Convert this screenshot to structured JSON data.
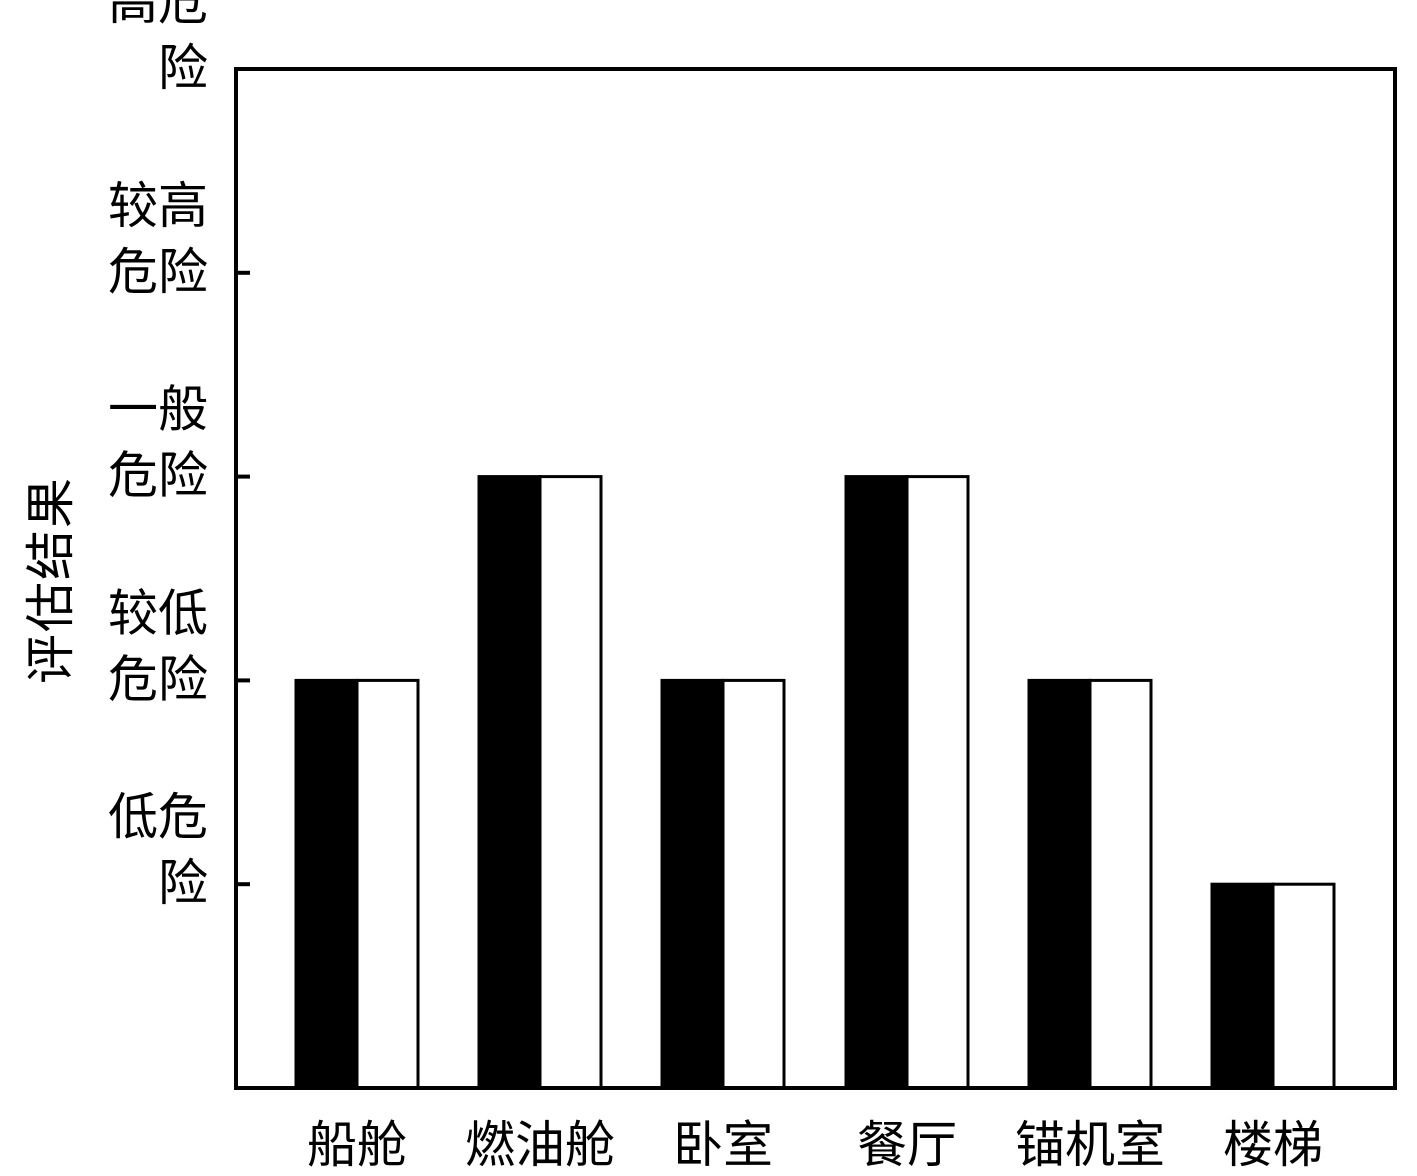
{
  "chart_data": {
    "type": "bar",
    "title": "",
    "xlabel": "",
    "ylabel": "评估结果",
    "categories": [
      "船舱",
      "燃油舱",
      "卧室",
      "餐厅",
      "锚机室",
      "楼梯"
    ],
    "y_tick_labels": [
      {
        "value": 1,
        "lines": [
          "低危",
          "险"
        ]
      },
      {
        "value": 2,
        "lines": [
          "较低",
          "危险"
        ]
      },
      {
        "value": 3,
        "lines": [
          "一般",
          "危险"
        ]
      },
      {
        "value": 4,
        "lines": [
          "较高",
          "危险"
        ]
      },
      {
        "value": 5,
        "lines": [
          "高危",
          "险"
        ]
      }
    ],
    "ylim": [
      0,
      5
    ],
    "grid": false,
    "series": [
      {
        "color": "#000000",
        "values": [
          2,
          3,
          2,
          3,
          2,
          1
        ]
      },
      {
        "color": "#ffffff",
        "values": [
          2,
          3,
          2,
          3,
          2,
          1
        ]
      }
    ]
  }
}
